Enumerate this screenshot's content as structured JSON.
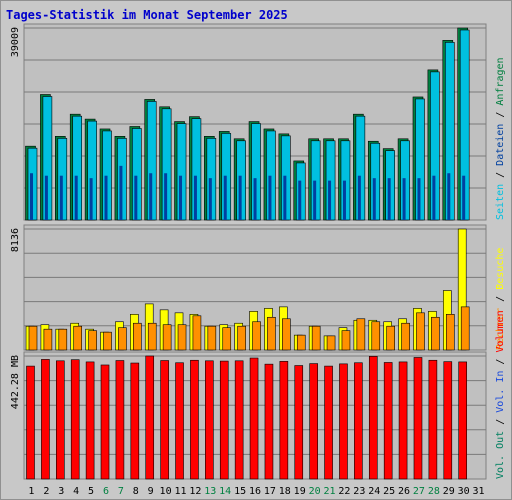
{
  "title": "Tages-Statistik im Monat September 2025",
  "colors": {
    "background": "#ffffff",
    "frame": "#c8c8c8",
    "plot_bg": "#c0c0c0",
    "title": "#0000cc",
    "grid": "#7a7a7a",
    "hits_side": "#007f3f",
    "hits_front": "#00c0e0",
    "files_fill": "#0040a0",
    "pages_fill": "#1070e0",
    "visits": "#ffff00",
    "sites": "#ff9000",
    "volume": "#ff0000",
    "kbin": "#1a4adc",
    "kbout": "#008060",
    "weekend_label": "#008040",
    "weekday_label": "#000000"
  },
  "chart_data": {
    "type": "bar",
    "title": "Tages-Statistik im Monat September 2025",
    "x": [
      "1",
      "2",
      "3",
      "4",
      "5",
      "6",
      "7",
      "8",
      "9",
      "10",
      "11",
      "12",
      "13",
      "14",
      "15",
      "16",
      "17",
      "18",
      "19",
      "20",
      "21",
      "22",
      "23",
      "24",
      "25",
      "26",
      "27",
      "28",
      "29",
      "30",
      "31"
    ],
    "weekend_days": [
      "6",
      "7",
      "13",
      "14",
      "20",
      "21",
      "27",
      "28"
    ],
    "panels": [
      {
        "name": "top",
        "ymax_label": "39009",
        "ymax": 39009,
        "legend": [
          "Anfragen",
          "Dateien",
          "Seiten"
        ],
        "legend_separator": " / ",
        "series": [
          {
            "name": "Anfragen",
            "values": [
              15000,
              25500,
              17000,
              21500,
              20500,
              18500,
              17000,
              19000,
              24500,
              23000,
              20000,
              21000,
              17000,
              18000,
              16500,
              20000,
              18500,
              17500,
              12000,
              16500,
              16500,
              16500,
              21500,
              16000,
              14500,
              16500,
              25000,
              30500,
              36500,
              39009,
              null
            ]
          },
          {
            "name": "Dateien",
            "values": [
              15000,
              25500,
              17000,
              21500,
              20500,
              18500,
              17000,
              19000,
              24500,
              23000,
              20000,
              21000,
              17000,
              18000,
              16500,
              20000,
              18500,
              17500,
              12000,
              16500,
              16500,
              16500,
              21500,
              16000,
              14500,
              16500,
              25000,
              30500,
              36500,
              39009,
              null
            ]
          },
          {
            "name": "Seiten",
            "values": [
              9500,
              9000,
              9000,
              9000,
              8500,
              9000,
              11000,
              9000,
              9500,
              9500,
              9000,
              9000,
              8500,
              9000,
              9000,
              8500,
              9000,
              9000,
              8000,
              8000,
              8000,
              8000,
              9000,
              8500,
              8500,
              8500,
              8500,
              9000,
              9500,
              9000,
              null
            ]
          }
        ]
      },
      {
        "name": "middle",
        "ymax_label": "8136",
        "ymax": 8136,
        "legend": [
          "Besuche",
          "Rechner"
        ],
        "legend_separator": " / ",
        "series": [
          {
            "name": "Besuche",
            "values": [
              1600,
              1700,
              1400,
              1800,
              1400,
              1200,
              1900,
              2400,
              3100,
              2700,
              2500,
              2400,
              1600,
              1700,
              1800,
              2600,
              2800,
              2900,
              1000,
              1600,
              950,
              1500,
              2000,
              2000,
              1900,
              2100,
              2800,
              2600,
              4000,
              8136,
              null
            ]
          },
          {
            "name": "Rechner",
            "values": [
              1600,
              1400,
              1400,
              1600,
              1300,
              1200,
              1500,
              1800,
              1800,
              1700,
              1700,
              2300,
              1600,
              1500,
              1600,
              1900,
              2200,
              2100,
              1000,
              1600,
              950,
              1300,
              2100,
              1900,
              1600,
              1800,
              2500,
              2200,
              2400,
              2900,
              null
            ]
          }
        ]
      },
      {
        "name": "bottom",
        "ymax_label": "442.28 MB",
        "ymax": 442.28,
        "legend": [
          "Volumen",
          "Vol. In",
          "Vol. Out"
        ],
        "legend_separator": " / ",
        "series": [
          {
            "name": "Volumen",
            "values": [
              406,
              430,
              425,
              429,
              421,
              410,
              426,
              417,
              442.28,
              426,
              418,
              427,
              425,
              424,
              425,
              435,
              413,
              423,
              408,
              415,
              406,
              414,
              418,
              441,
              419,
              421,
              437,
              427,
              422,
              421,
              null
            ]
          }
        ]
      }
    ]
  }
}
